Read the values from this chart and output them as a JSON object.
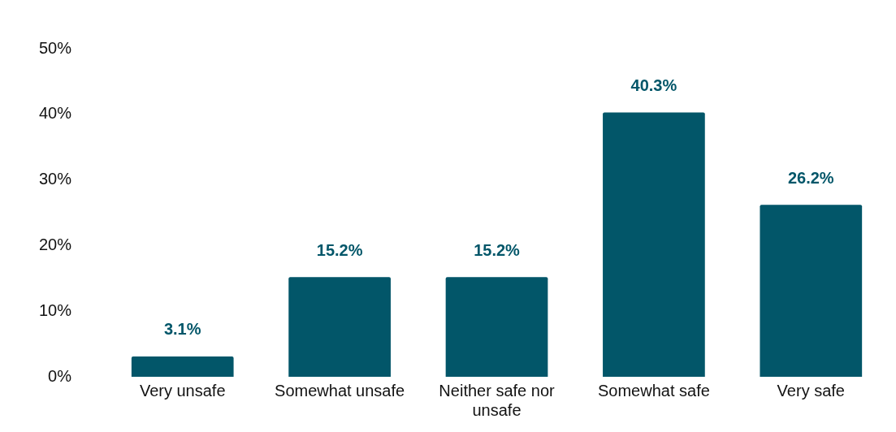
{
  "chart_data": {
    "type": "bar",
    "categories": [
      "Very unsafe",
      "Somewhat unsafe",
      "Neither safe nor unsafe",
      "Somewhat safe",
      "Very safe"
    ],
    "values": [
      3.1,
      15.2,
      15.2,
      40.3,
      26.2
    ],
    "value_labels": [
      "3.1%",
      "15.2%",
      "15.2%",
      "40.3%",
      "26.2%"
    ],
    "color": "#025669",
    "ylim": [
      0,
      50
    ],
    "yticks": [
      {
        "value": 0,
        "label": "0%"
      },
      {
        "value": 10,
        "label": "10%"
      },
      {
        "value": 20,
        "label": "20%"
      },
      {
        "value": 30,
        "label": "30%"
      },
      {
        "value": 40,
        "label": "40%"
      },
      {
        "value": 50,
        "label": "50%"
      }
    ],
    "grid": false,
    "legend": false
  }
}
